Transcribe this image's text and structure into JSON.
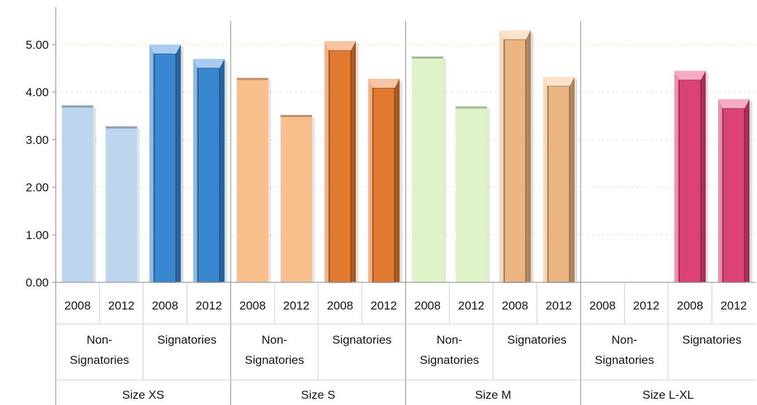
{
  "chart_data": {
    "type": "bar",
    "title": "",
    "xlabel": "",
    "ylabel": "",
    "ylim": [
      0,
      5.5
    ],
    "y_ticks": [
      "0.00",
      "1.00",
      "2.00",
      "3.00",
      "4.00",
      "5.00"
    ],
    "grid": true,
    "legend": "none",
    "groups": [
      {
        "label": "Size XS",
        "subgroups": [
          {
            "label": "Non-\nSignatories",
            "years": [
              "2008",
              "2012"
            ],
            "values": [
              3.72,
              3.28
            ],
            "color": "#bcd6ee",
            "style": "flat"
          },
          {
            "label": "Signatories",
            "years": [
              "2008",
              "2012"
            ],
            "values": [
              5.0,
              4.7
            ],
            "color": "#3b8edb",
            "style": "beveled"
          }
        ]
      },
      {
        "label": "Size S",
        "subgroups": [
          {
            "label": "Non-\nSignatories",
            "years": [
              "2008",
              "2012"
            ],
            "values": [
              4.3,
              3.52
            ],
            "color": "#f9c08e",
            "style": "flat"
          },
          {
            "label": "Signatories",
            "years": [
              "2008",
              "2012"
            ],
            "values": [
              5.07,
              4.28
            ],
            "color": "#ee7f32",
            "style": "beveled"
          }
        ]
      },
      {
        "label": "Size M",
        "subgroups": [
          {
            "label": "Non-\nSignatories",
            "years": [
              "2008",
              "2012"
            ],
            "values": [
              4.75,
              3.7
            ],
            "color": "#def4c8",
            "style": "flat"
          },
          {
            "label": "Signatories",
            "years": [
              "2008",
              "2012"
            ],
            "values": [
              5.3,
              4.32
            ],
            "color": "#f6be8a",
            "style": "beveled"
          }
        ]
      },
      {
        "label": "Size L-XL",
        "subgroups": [
          {
            "label": "Non-\nSignatories",
            "years": [
              "2008",
              "2012"
            ],
            "values": [
              null,
              null
            ],
            "color": "#f9b9c9",
            "style": "flat"
          },
          {
            "label": "Signatories",
            "years": [
              "2008",
              "2012"
            ],
            "values": [
              4.45,
              3.85
            ],
            "color": "#e8457b",
            "style": "beveled"
          }
        ]
      }
    ]
  }
}
